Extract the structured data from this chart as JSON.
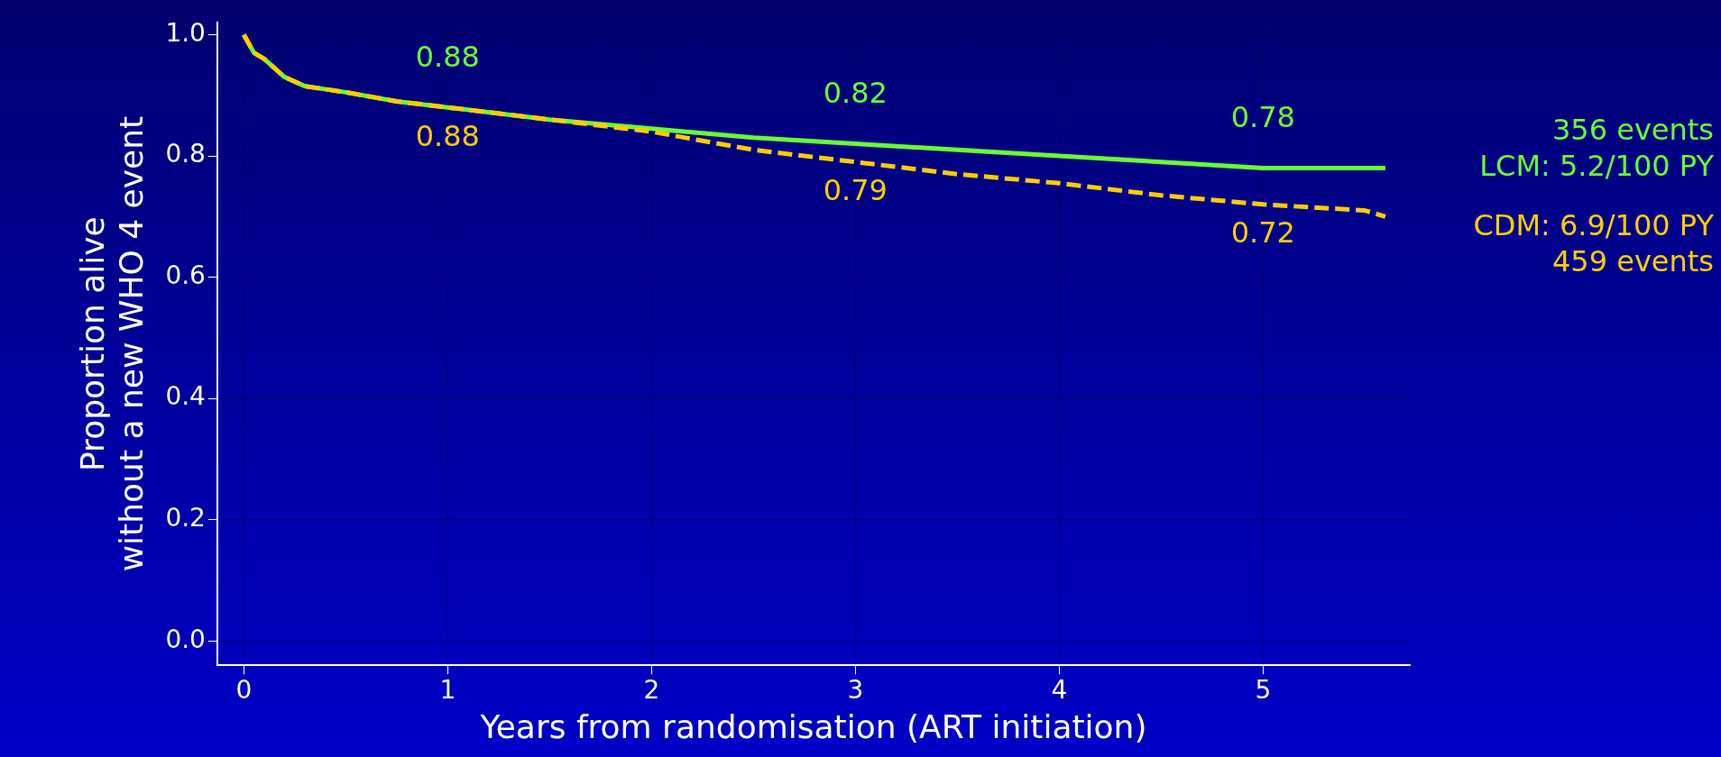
{
  "chart_data": {
    "type": "line",
    "xlabel": "Years from randomisation (ART initiation)",
    "ylabel": "Proportion alive\nwithout a new WHO 4 event",
    "xlim": [
      -0.13,
      5.72
    ],
    "xticks": [
      0,
      1,
      2,
      3,
      4,
      5
    ],
    "ylim": [
      -0.04,
      1.02
    ],
    "yticks": [
      {
        "value": 0,
        "label": "0.0"
      },
      {
        "value": 0.2,
        "label": "0.2"
      },
      {
        "value": 0.4,
        "label": "0.4"
      },
      {
        "value": 0.6,
        "label": "0.6"
      },
      {
        "value": 0.8,
        "label": "0.8"
      },
      {
        "value": 1,
        "label": "1.0"
      }
    ],
    "grid": true,
    "legend": false,
    "marker": "none",
    "series": [
      {
        "name": "356 events\nLCM: 5.2/100 PY",
        "color": "#66ff33",
        "line_style": "solid",
        "x": [
          0,
          0.05,
          0.1,
          0.2,
          0.3,
          0.5,
          0.75,
          1,
          1.5,
          2,
          2.5,
          3,
          3.5,
          4,
          4.5,
          5,
          5.6
        ],
        "values": [
          1.0,
          0.97,
          0.96,
          0.93,
          0.915,
          0.905,
          0.89,
          0.88,
          0.86,
          0.845,
          0.83,
          0.82,
          0.81,
          0.8,
          0.79,
          0.78,
          0.78
        ],
        "value_labels": [
          null,
          null,
          null,
          null,
          null,
          null,
          null,
          "0.88",
          null,
          null,
          null,
          "0.82",
          null,
          null,
          null,
          "0.78",
          null
        ]
      },
      {
        "name": "CDM: 6.9/100 PY\n459 events",
        "color": "#ffcc00",
        "line_style": "dashed",
        "x": [
          0,
          0.05,
          0.1,
          0.2,
          0.3,
          0.5,
          0.75,
          1,
          1.5,
          2,
          2.5,
          3,
          3.5,
          4,
          4.5,
          5,
          5.5,
          5.6
        ],
        "values": [
          1.0,
          0.97,
          0.96,
          0.93,
          0.915,
          0.905,
          0.89,
          0.88,
          0.86,
          0.84,
          0.81,
          0.79,
          0.77,
          0.755,
          0.735,
          0.72,
          0.71,
          0.7
        ],
        "value_labels": [
          null,
          null,
          null,
          null,
          null,
          null,
          null,
          "0.88",
          null,
          null,
          null,
          "0.79",
          null,
          null,
          null,
          "0.72",
          null,
          null
        ]
      }
    ]
  }
}
